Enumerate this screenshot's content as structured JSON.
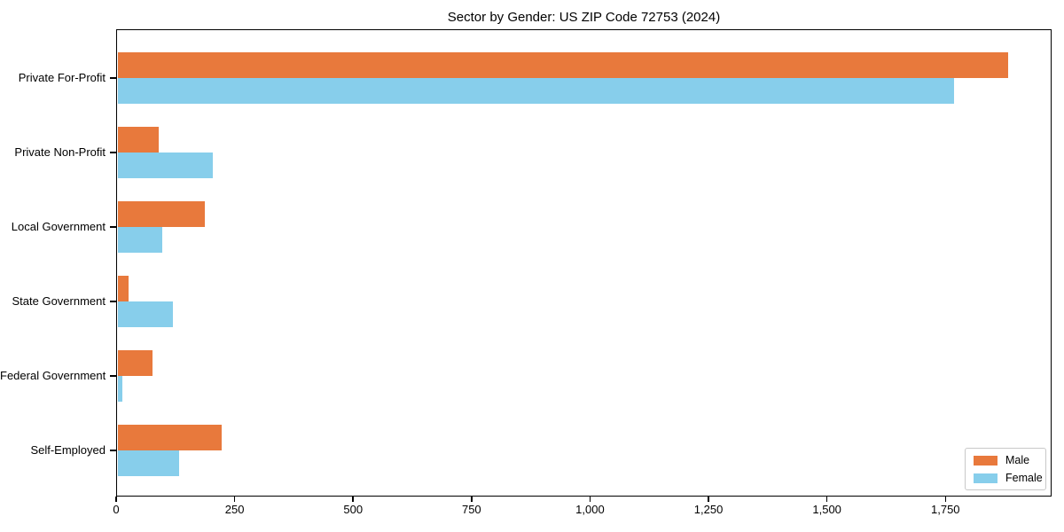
{
  "title": "Sector by Gender: US ZIP Code 72753 (2024)",
  "chart_data": {
    "type": "bar",
    "orientation": "horizontal",
    "title": "Sector by Gender: US ZIP Code 72753 (2024)",
    "categories": [
      "Private For-Profit",
      "Private Non-Profit",
      "Local Government",
      "State Government",
      "Federal Government",
      "Self-Employed"
    ],
    "series": [
      {
        "name": "Male",
        "color": "#e8793c",
        "values": [
          1880,
          87,
          184,
          24,
          74,
          220
        ]
      },
      {
        "name": "Female",
        "color": "#87ceeb",
        "values": [
          1765,
          201,
          94,
          117,
          10,
          130
        ]
      }
    ],
    "xlabel": "",
    "ylabel": "",
    "xlim": [
      0,
      1974
    ],
    "x_ticks": [
      0,
      250,
      500,
      750,
      1000,
      1250,
      1500,
      1750
    ],
    "x_tick_labels": [
      "0",
      "250",
      "500",
      "750",
      "1,000",
      "1,250",
      "1,500",
      "1,750"
    ],
    "legend": {
      "position": "lower right",
      "entries": [
        "Male",
        "Female"
      ]
    },
    "grid": false
  },
  "colors": {
    "male": "#e8793c",
    "female": "#87ceeb",
    "frame": "#000000",
    "background": "#ffffff",
    "legend_border": "#c8c8c8",
    "text": "#000000"
  }
}
